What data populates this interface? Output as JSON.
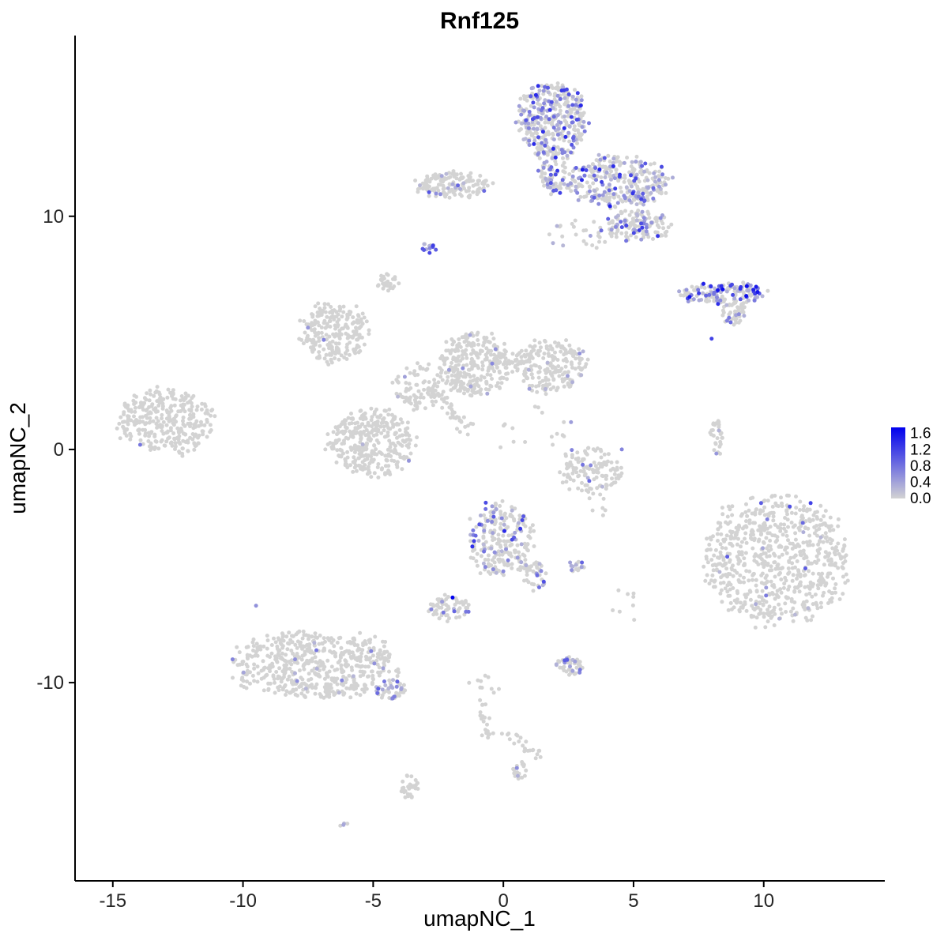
{
  "title": "Rnf125",
  "axes": {
    "x": {
      "label": "umapNC_1",
      "ticks": [
        -15,
        -10,
        -5,
        0,
        5,
        10
      ],
      "range": [
        -16.45,
        14.65
      ]
    },
    "y": {
      "label": "umapNC_2",
      "ticks": [
        -10,
        0,
        10
      ],
      "range": [
        -18.5,
        17.75
      ]
    }
  },
  "legend": {
    "ticks": [
      "1.6",
      "1.2",
      "0.8",
      "0.4",
      "0.0"
    ],
    "min": 0.0,
    "max": 1.6,
    "bar_value_top": 1.75
  },
  "colors": {
    "low": "#D3D3D3",
    "high": "#0000EE",
    "axis": "#000000",
    "tick_text": "#262626",
    "background": "#FFFFFF"
  },
  "chart_data": {
    "type": "scatter",
    "title": "Rnf125",
    "xlabel": "umapNC_1",
    "ylabel": "umapNC_2",
    "xlim": [
      -16.45,
      14.65
    ],
    "ylim": [
      -18.5,
      17.75
    ],
    "point_radius_px": 2.5,
    "value_range": [
      0.0,
      1.6
    ],
    "clusters": [
      {
        "name": "top-main-blob",
        "cx": 1.9,
        "cy": 14.1,
        "rx": 1.45,
        "ry": 1.75,
        "n": 380,
        "frac": 0.4,
        "vmax": 1.35,
        "seed": 1
      },
      {
        "name": "top-neck",
        "cx": 1.9,
        "cy": 11.8,
        "rx": 0.55,
        "ry": 0.9,
        "n": 70,
        "frac": 0.35,
        "vmax": 1.2,
        "seed": 2
      },
      {
        "name": "top-right-arm",
        "cx": 4.4,
        "cy": 11.5,
        "rx": 2.1,
        "ry": 1.15,
        "n": 330,
        "frac": 0.32,
        "vmax": 1.4,
        "seed": 3
      },
      {
        "name": "arm-lower-blob",
        "cx": 5.1,
        "cy": 9.6,
        "rx": 1.4,
        "ry": 0.7,
        "n": 140,
        "frac": 0.28,
        "vmax": 1.25,
        "seed": 4
      },
      {
        "name": "top-left-strip",
        "cx": -1.9,
        "cy": 11.35,
        "rx": 1.55,
        "ry": 0.6,
        "n": 150,
        "frac": 0.07,
        "vmax": 1.0,
        "seed": 5
      },
      {
        "name": "small-purple-cluster",
        "cx": -2.85,
        "cy": 8.65,
        "rx": 0.28,
        "ry": 0.3,
        "n": 14,
        "frac": 0.65,
        "vmax": 1.2,
        "seed": 6
      },
      {
        "name": "small-gray-upper",
        "cx": -4.45,
        "cy": 7.2,
        "rx": 0.45,
        "ry": 0.4,
        "n": 28,
        "frac": 0,
        "vmax": 0,
        "seed": 7
      },
      {
        "name": "right-wing",
        "cx": 8.45,
        "cy": 6.7,
        "rx": 1.85,
        "ry": 0.5,
        "n": 150,
        "frac": 0.45,
        "vmax": 1.5,
        "seed": 8
      },
      {
        "name": "right-wing-tail",
        "cx": 8.9,
        "cy": 5.85,
        "rx": 0.5,
        "ry": 0.55,
        "n": 45,
        "frac": 0.15,
        "vmax": 0.8,
        "seed": 9
      },
      {
        "name": "upper-sparse-mid",
        "cx": 2.8,
        "cy": 9.2,
        "rx": 1.2,
        "ry": 0.8,
        "n": 25,
        "frac": 0.15,
        "vmax": 0.9,
        "seed": 10
      },
      {
        "name": "left-mid-cluster",
        "cx": -6.5,
        "cy": 5.0,
        "rx": 1.35,
        "ry": 1.4,
        "n": 230,
        "frac": 0.015,
        "vmax": 0.6,
        "seed": 11
      },
      {
        "name": "center-mass-west",
        "cx": -1.1,
        "cy": 3.65,
        "rx": 1.45,
        "ry": 1.5,
        "n": 300,
        "frac": 0.015,
        "vmax": 0.6,
        "seed": 12
      },
      {
        "name": "center-mass-east",
        "cx": 1.75,
        "cy": 3.6,
        "rx": 1.5,
        "ry": 1.2,
        "n": 220,
        "frac": 0.02,
        "vmax": 0.7,
        "seed": 13
      },
      {
        "name": "center-bridge",
        "cx": -3.3,
        "cy": 2.65,
        "rx": 1.0,
        "ry": 1.1,
        "n": 80,
        "frac": 0.02,
        "vmax": 0.5,
        "seed": 14
      },
      {
        "name": "mid-left-blob",
        "cx": -5.05,
        "cy": 0.35,
        "rx": 1.75,
        "ry": 1.6,
        "n": 340,
        "frac": 0.008,
        "vmax": 0.5,
        "seed": 15
      },
      {
        "name": "far-left-cluster",
        "cx": -13.0,
        "cy": 1.2,
        "rx": 1.9,
        "ry": 1.55,
        "n": 320,
        "frac": 0.004,
        "vmax": 0.6,
        "seed": 16
      },
      {
        "name": "diagonal-streak",
        "type": "streak",
        "cx": -2.8,
        "cy": 2.7,
        "x2": -1.3,
        "y2": 0.8,
        "jitter": 0.15,
        "n": 45,
        "frac": 0,
        "vmax": 0,
        "seed": 17
      },
      {
        "name": "crescent-right",
        "cx": 3.35,
        "cy": -0.9,
        "rx": 1.3,
        "ry": 1.1,
        "n": 130,
        "frac": 0.03,
        "vmax": 0.9,
        "seed": 18
      },
      {
        "name": "small-vertical",
        "cx": 8.2,
        "cy": 0.5,
        "rx": 0.28,
        "ry": 0.8,
        "n": 30,
        "frac": 0.03,
        "vmax": 0.6,
        "seed": 19
      },
      {
        "name": "big-right-cluster",
        "cx": 10.45,
        "cy": -4.75,
        "rx": 3.0,
        "ry": 2.9,
        "n": 720,
        "frac": 0.012,
        "vmax": 0.9,
        "seed": 20
      },
      {
        "name": "center-low-cluster",
        "cx": -0.1,
        "cy": -3.9,
        "rx": 1.35,
        "ry": 1.75,
        "n": 240,
        "frac": 0.2,
        "vmax": 1.3,
        "seed": 21
      },
      {
        "name": "center-low-neck",
        "cx": 1.2,
        "cy": -5.4,
        "rx": 0.5,
        "ry": 0.7,
        "n": 40,
        "frac": 0.25,
        "vmax": 1.0,
        "seed": 22
      },
      {
        "name": "small-east-blob",
        "cx": 2.8,
        "cy": -5.0,
        "rx": 0.45,
        "ry": 0.28,
        "n": 18,
        "frac": 0.5,
        "vmax": 1.1,
        "seed": 23
      },
      {
        "name": "small-t-cluster",
        "cx": -2.15,
        "cy": -6.8,
        "rx": 0.85,
        "ry": 0.6,
        "n": 65,
        "frac": 0.12,
        "vmax": 1.0,
        "seed": 24
      },
      {
        "name": "bottom-left-main",
        "cx": -7.25,
        "cy": -9.2,
        "rx": 3.3,
        "ry": 1.6,
        "n": 560,
        "frac": 0.02,
        "vmax": 0.9,
        "seed": 25
      },
      {
        "name": "bottom-left-tip",
        "cx": -4.4,
        "cy": -10.3,
        "rx": 0.7,
        "ry": 0.45,
        "n": 45,
        "frac": 0.45,
        "vmax": 1.1,
        "seed": 26
      },
      {
        "name": "small-v-cluster",
        "cx": 2.5,
        "cy": -9.35,
        "rx": 0.6,
        "ry": 0.5,
        "n": 48,
        "frac": 0.3,
        "vmax": 1.1,
        "seed": 27
      },
      {
        "name": "strand-vertical",
        "type": "streak",
        "cx": -0.9,
        "cy": -10.8,
        "x2": -0.6,
        "y2": -12.3,
        "jitter": 0.13,
        "n": 22,
        "frac": 0,
        "vmax": 0,
        "seed": 28
      },
      {
        "name": "strand-diagonal",
        "type": "streak",
        "cx": 0.0,
        "cy": -12.15,
        "x2": 1.65,
        "y2": -13.2,
        "jitter": 0.13,
        "n": 22,
        "frac": 0,
        "vmax": 0,
        "seed": 29
      },
      {
        "name": "small-x-cluster",
        "cx": 0.65,
        "cy": -13.8,
        "rx": 0.32,
        "ry": 0.4,
        "n": 22,
        "frac": 0.12,
        "vmax": 0.8,
        "seed": 30
      },
      {
        "name": "small-y-cluster",
        "cx": -3.6,
        "cy": -14.45,
        "rx": 0.38,
        "ry": 0.55,
        "n": 30,
        "frac": 0,
        "vmax": 0,
        "seed": 31
      },
      {
        "name": "tiny-z-pair",
        "cx": -6.1,
        "cy": -16.15,
        "rx": 0.18,
        "ry": 0.15,
        "n": 4,
        "frac": 0.35,
        "vmax": 0.5,
        "seed": 32
      },
      {
        "name": "sparse-middle",
        "cx": 1.0,
        "cy": 0.9,
        "rx": 1.8,
        "ry": 1.4,
        "n": 16,
        "frac": 0.05,
        "vmax": 0.6,
        "seed": 33
      },
      {
        "name": "sparse-south-east",
        "cx": 5.0,
        "cy": -6.8,
        "rx": 1.1,
        "ry": 0.9,
        "n": 8,
        "frac": 0,
        "vmax": 0,
        "seed": 34
      },
      {
        "name": "sparse-east-mid",
        "cx": 3.4,
        "cy": -2.6,
        "rx": 0.8,
        "ry": 0.6,
        "n": 6,
        "frac": 0,
        "vmax": 0,
        "seed": 35
      },
      {
        "name": "sparse-south-center",
        "cx": -0.5,
        "cy": -10.1,
        "rx": 0.8,
        "ry": 0.55,
        "n": 10,
        "frac": 0,
        "vmax": 0,
        "seed": 36
      }
    ],
    "highlight_points": [
      {
        "x": -1.95,
        "y": -6.35,
        "v": 1.6
      },
      {
        "x": 8.0,
        "y": 4.75,
        "v": 1.1
      },
      {
        "x": -13.95,
        "y": 0.2,
        "v": 0.7
      },
      {
        "x": 9.9,
        "y": -2.3,
        "v": 0.9
      },
      {
        "x": 11.0,
        "y": -2.45,
        "v": 1.0
      },
      {
        "x": 11.8,
        "y": -2.3,
        "v": 1.1
      },
      {
        "x": 11.5,
        "y": -3.15,
        "v": 0.8
      },
      {
        "x": 11.6,
        "y": -5.1,
        "v": 0.9
      },
      {
        "x": 8.6,
        "y": -4.6,
        "v": 0.9
      },
      {
        "x": -9.5,
        "y": -6.7,
        "v": 0.5
      },
      {
        "x": -10.4,
        "y": -9.0,
        "v": 0.6
      },
      {
        "x": -8.0,
        "y": -9.0,
        "v": 0.5
      },
      {
        "x": -6.2,
        "y": -9.9,
        "v": 0.6
      },
      {
        "x": 9.35,
        "y": 7.0,
        "v": 1.5
      },
      {
        "x": 9.6,
        "y": 6.85,
        "v": 1.35
      },
      {
        "x": 9.1,
        "y": 6.9,
        "v": 1.2
      },
      {
        "x": 3.3,
        "y": -1.35,
        "v": 0.8
      },
      {
        "x": 4.55,
        "y": 0.0,
        "v": 0.6
      },
      {
        "x": -6.9,
        "y": 4.7,
        "v": 0.6
      },
      {
        "x": -0.3,
        "y": 4.3,
        "v": 0.5
      },
      {
        "x": 1.0,
        "y": 2.6,
        "v": 0.4
      }
    ]
  }
}
